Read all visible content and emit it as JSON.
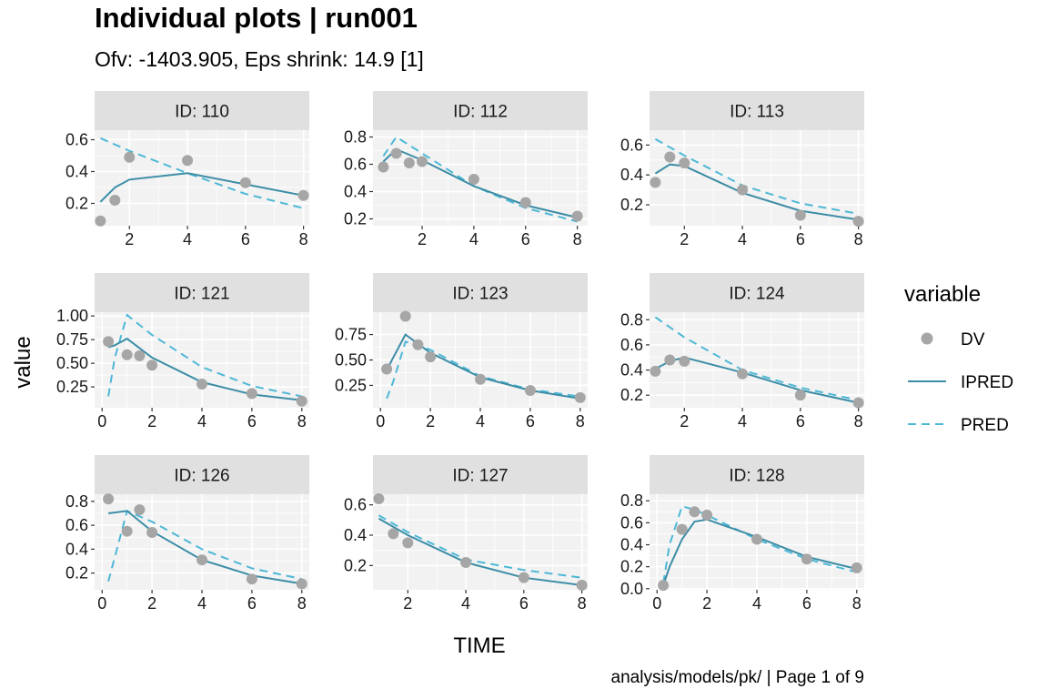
{
  "title": "Individual plots | run001",
  "subtitle": "Ofv: -1403.905, Eps shrink: 14.9 [1]",
  "caption": "analysis/models/pk/ | Page 1 of 9",
  "colors": {
    "panel_bg": "#f2f2f2",
    "strip_bg": "#e0e0e0",
    "grid": "#ffffff",
    "DV": "#a6a6a6",
    "IPRED": "#3c8da6",
    "PRED": "#4db8d6"
  },
  "chart_data": {
    "type": "line",
    "xlabel": "TIME",
    "ylabel": "value",
    "legend": {
      "title": "variable",
      "position": "right",
      "entries": [
        {
          "name": "DV",
          "mark": "point",
          "color": "#a6a6a6"
        },
        {
          "name": "IPRED",
          "mark": "solid-line",
          "color": "#3c8da6"
        },
        {
          "name": "PRED",
          "mark": "dashed-line",
          "color": "#4db8d6"
        }
      ]
    },
    "grid": true,
    "panels": [
      {
        "label": "ID: 110",
        "xlim": [
          0.8,
          8.2
        ],
        "ylim": [
          0.06,
          0.66
        ],
        "xticks": [
          2,
          4,
          6,
          8
        ],
        "yticks": [
          0.2,
          0.4,
          0.6
        ],
        "ytick_labels": [
          "0.2",
          "0.4",
          "0.6"
        ],
        "DV": [
          [
            1,
            0.09
          ],
          [
            1.5,
            0.22
          ],
          [
            2,
            0.49
          ],
          [
            4,
            0.47
          ],
          [
            6,
            0.33
          ],
          [
            8,
            0.25
          ]
        ],
        "IPRED": [
          [
            1,
            0.21
          ],
          [
            1.5,
            0.3
          ],
          [
            2,
            0.35
          ],
          [
            4,
            0.39
          ],
          [
            6,
            0.32
          ],
          [
            8,
            0.25
          ]
        ],
        "PRED": [
          [
            1,
            0.61
          ],
          [
            2,
            0.53
          ],
          [
            4,
            0.39
          ],
          [
            6,
            0.26
          ],
          [
            8,
            0.17
          ]
        ]
      },
      {
        "label": "ID: 112",
        "xlim": [
          0.1,
          8.4
        ],
        "ylim": [
          0.15,
          0.85
        ],
        "xticks": [
          2,
          4,
          6,
          8
        ],
        "yticks": [
          0.2,
          0.4,
          0.6,
          0.8
        ],
        "ytick_labels": [
          "0.2",
          "0.4",
          "0.6",
          "0.8"
        ],
        "DV": [
          [
            0.5,
            0.58
          ],
          [
            1,
            0.68
          ],
          [
            1.5,
            0.61
          ],
          [
            2,
            0.62
          ],
          [
            4,
            0.49
          ],
          [
            6,
            0.32
          ],
          [
            8,
            0.22
          ]
        ],
        "IPRED": [
          [
            0.5,
            0.62
          ],
          [
            1,
            0.71
          ],
          [
            2,
            0.63
          ],
          [
            4,
            0.44
          ],
          [
            6,
            0.3
          ],
          [
            8,
            0.21
          ]
        ],
        "PRED": [
          [
            0.5,
            0.66
          ],
          [
            1,
            0.8
          ],
          [
            2,
            0.68
          ],
          [
            4,
            0.44
          ],
          [
            6,
            0.28
          ],
          [
            8,
            0.18
          ]
        ]
      },
      {
        "label": "ID: 113",
        "xlim": [
          0.8,
          8.2
        ],
        "ylim": [
          0.06,
          0.7
        ],
        "xticks": [
          2,
          4,
          6,
          8
        ],
        "yticks": [
          0.2,
          0.4,
          0.6
        ],
        "ytick_labels": [
          "0.2",
          "0.4",
          "0.6"
        ],
        "DV": [
          [
            1,
            0.35
          ],
          [
            1.5,
            0.52
          ],
          [
            2,
            0.48
          ],
          [
            4,
            0.3
          ],
          [
            6,
            0.13
          ],
          [
            8,
            0.09
          ]
        ],
        "IPRED": [
          [
            1,
            0.41
          ],
          [
            1.5,
            0.47
          ],
          [
            2,
            0.46
          ],
          [
            4,
            0.28
          ],
          [
            6,
            0.16
          ],
          [
            8,
            0.1
          ]
        ],
        "PRED": [
          [
            1,
            0.64
          ],
          [
            2,
            0.53
          ],
          [
            4,
            0.33
          ],
          [
            6,
            0.21
          ],
          [
            8,
            0.14
          ]
        ]
      },
      {
        "label": "ID: 121",
        "xlim": [
          -0.3,
          8.3
        ],
        "ylim": [
          0.03,
          1.04
        ],
        "xticks": [
          0,
          2,
          4,
          6,
          8
        ],
        "yticks": [
          0.25,
          0.5,
          0.75,
          1.0
        ],
        "ytick_labels": [
          "0.25",
          "0.50",
          "0.75",
          "1.00"
        ],
        "DV": [
          [
            0.25,
            0.73
          ],
          [
            1,
            0.59
          ],
          [
            1.5,
            0.58
          ],
          [
            2,
            0.48
          ],
          [
            4,
            0.28
          ],
          [
            6,
            0.18
          ],
          [
            8,
            0.1
          ]
        ],
        "IPRED": [
          [
            0.25,
            0.67
          ],
          [
            0.5,
            0.69
          ],
          [
            1,
            0.76
          ],
          [
            2,
            0.56
          ],
          [
            4,
            0.3
          ],
          [
            6,
            0.17
          ],
          [
            8,
            0.11
          ]
        ],
        "PRED": [
          [
            0.25,
            0.15
          ],
          [
            0.5,
            0.55
          ],
          [
            1,
            1.01
          ],
          [
            2,
            0.8
          ],
          [
            4,
            0.46
          ],
          [
            6,
            0.26
          ],
          [
            8,
            0.15
          ]
        ]
      },
      {
        "label": "ID: 123",
        "xlim": [
          -0.3,
          8.3
        ],
        "ylim": [
          0.03,
          0.97
        ],
        "xticks": [
          0,
          2,
          4,
          6,
          8
        ],
        "yticks": [
          0.25,
          0.5,
          0.75
        ],
        "ytick_labels": [
          "0.25",
          "0.50",
          "0.75"
        ],
        "DV": [
          [
            0.25,
            0.41
          ],
          [
            1,
            0.93
          ],
          [
            1.5,
            0.65
          ],
          [
            2,
            0.53
          ],
          [
            4,
            0.31
          ],
          [
            6,
            0.2
          ],
          [
            8,
            0.13
          ]
        ],
        "IPRED": [
          [
            0.25,
            0.4
          ],
          [
            0.5,
            0.52
          ],
          [
            1,
            0.75
          ],
          [
            2,
            0.57
          ],
          [
            4,
            0.33
          ],
          [
            6,
            0.2
          ],
          [
            8,
            0.12
          ]
        ],
        "PRED": [
          [
            0.25,
            0.12
          ],
          [
            0.5,
            0.28
          ],
          [
            1,
            0.68
          ],
          [
            2,
            0.6
          ],
          [
            4,
            0.34
          ],
          [
            6,
            0.21
          ],
          [
            8,
            0.14
          ]
        ]
      },
      {
        "label": "ID: 124",
        "xlim": [
          0.8,
          8.2
        ],
        "ylim": [
          0.1,
          0.86
        ],
        "xticks": [
          2,
          4,
          6,
          8
        ],
        "yticks": [
          0.2,
          0.4,
          0.6,
          0.8
        ],
        "ytick_labels": [
          "0.2",
          "0.4",
          "0.6",
          "0.8"
        ],
        "DV": [
          [
            1,
            0.39
          ],
          [
            1.5,
            0.48
          ],
          [
            2,
            0.47
          ],
          [
            4,
            0.37
          ],
          [
            6,
            0.2
          ],
          [
            8,
            0.14
          ]
        ],
        "IPRED": [
          [
            1,
            0.41
          ],
          [
            1.5,
            0.47
          ],
          [
            2,
            0.5
          ],
          [
            4,
            0.38
          ],
          [
            6,
            0.24
          ],
          [
            8,
            0.14
          ]
        ],
        "PRED": [
          [
            1,
            0.82
          ],
          [
            2,
            0.66
          ],
          [
            4,
            0.4
          ],
          [
            6,
            0.26
          ],
          [
            8,
            0.16
          ]
        ]
      },
      {
        "label": "ID: 126",
        "xlim": [
          -0.3,
          8.3
        ],
        "ylim": [
          0.06,
          0.86
        ],
        "xticks": [
          0,
          2,
          4,
          6,
          8
        ],
        "yticks": [
          0.2,
          0.4,
          0.6,
          0.8
        ],
        "ytick_labels": [
          "0.2",
          "0.4",
          "0.6",
          "0.8"
        ],
        "DV": [
          [
            0.25,
            0.82
          ],
          [
            1,
            0.55
          ],
          [
            1.5,
            0.73
          ],
          [
            2,
            0.54
          ],
          [
            4,
            0.31
          ],
          [
            6,
            0.15
          ],
          [
            8,
            0.11
          ]
        ],
        "IPRED": [
          [
            0.25,
            0.7
          ],
          [
            1,
            0.72
          ],
          [
            2,
            0.55
          ],
          [
            4,
            0.31
          ],
          [
            6,
            0.18
          ],
          [
            8,
            0.11
          ]
        ],
        "PRED": [
          [
            0.25,
            0.13
          ],
          [
            1,
            0.72
          ],
          [
            2,
            0.63
          ],
          [
            4,
            0.4
          ],
          [
            6,
            0.24
          ],
          [
            8,
            0.15
          ]
        ]
      },
      {
        "label": "ID: 127",
        "xlim": [
          0.8,
          8.2
        ],
        "ylim": [
          0.04,
          0.67
        ],
        "xticks": [
          2,
          4,
          6,
          8
        ],
        "yticks": [
          0.2,
          0.4,
          0.6
        ],
        "ytick_labels": [
          "0.2",
          "0.4",
          "0.6"
        ],
        "DV": [
          [
            1,
            0.64
          ],
          [
            1.5,
            0.41
          ],
          [
            2,
            0.35
          ],
          [
            4,
            0.22
          ],
          [
            6,
            0.12
          ],
          [
            8,
            0.07
          ]
        ],
        "IPRED": [
          [
            1,
            0.51
          ],
          [
            2,
            0.4
          ],
          [
            4,
            0.22
          ],
          [
            6,
            0.12
          ],
          [
            8,
            0.07
          ]
        ],
        "PRED": [
          [
            1,
            0.53
          ],
          [
            2,
            0.42
          ],
          [
            4,
            0.24
          ],
          [
            6,
            0.17
          ],
          [
            8,
            0.12
          ]
        ]
      },
      {
        "label": "ID: 128",
        "xlim": [
          -0.3,
          8.3
        ],
        "ylim": [
          -0.01,
          0.86
        ],
        "xticks": [
          0,
          2,
          4,
          6,
          8
        ],
        "yticks": [
          0.0,
          0.2,
          0.4,
          0.6,
          0.8
        ],
        "ytick_labels": [
          "0.0",
          "0.2",
          "0.4",
          "0.6",
          "0.8"
        ],
        "DV": [
          [
            0.25,
            0.03
          ],
          [
            1,
            0.54
          ],
          [
            1.5,
            0.7
          ],
          [
            2,
            0.67
          ],
          [
            4,
            0.45
          ],
          [
            6,
            0.27
          ],
          [
            8,
            0.19
          ]
        ],
        "IPRED": [
          [
            0.25,
            0.03
          ],
          [
            0.5,
            0.2
          ],
          [
            1,
            0.45
          ],
          [
            1.5,
            0.61
          ],
          [
            2,
            0.63
          ],
          [
            4,
            0.47
          ],
          [
            6,
            0.29
          ],
          [
            8,
            0.18
          ]
        ],
        "PRED": [
          [
            0.25,
            0.05
          ],
          [
            0.5,
            0.4
          ],
          [
            1,
            0.75
          ],
          [
            1.5,
            0.72
          ],
          [
            2,
            0.67
          ],
          [
            4,
            0.45
          ],
          [
            6,
            0.27
          ],
          [
            8,
            0.15
          ]
        ]
      }
    ]
  }
}
